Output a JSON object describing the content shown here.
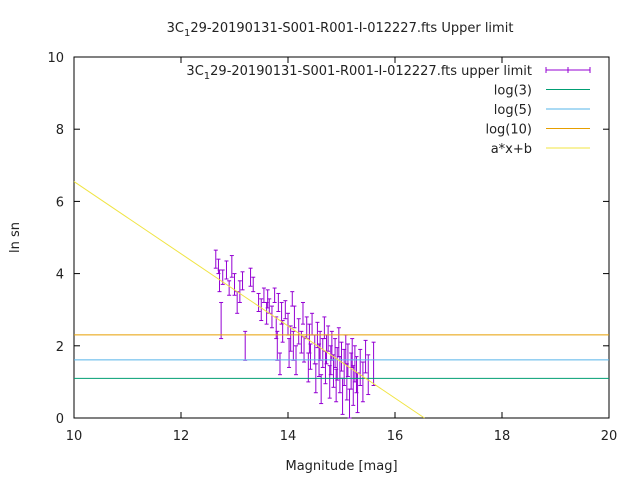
{
  "chart_data": {
    "type": "scatter",
    "title": "3C_129-20190131-S001-R001-I-012227.fts Upper limit",
    "title_parts": {
      "before": "3C",
      "subscript": "1",
      "after": "29-20190131-S001-R001-I-012227.fts Upper limit"
    },
    "xlabel": "Magnitude [mag]",
    "ylabel": "ln sn",
    "xlim": [
      10,
      20
    ],
    "ylim": [
      0,
      10
    ],
    "x_ticks": [
      "10",
      "12",
      "14",
      "16",
      "18",
      "20"
    ],
    "y_ticks": [
      "0",
      "2",
      "4",
      "6",
      "8",
      "10"
    ],
    "grid": false,
    "legend_position": "top-right",
    "legend": [
      {
        "label_parts": {
          "before": "3C",
          "subscript": "1",
          "after": "29-20190131-S001-R001-I-012227.fts upper limit"
        },
        "color": "#9400d3",
        "style": "errorbars"
      },
      {
        "label": "log(3)",
        "color": "#009e73",
        "style": "line"
      },
      {
        "label": "log(5)",
        "color": "#56b4e9",
        "style": "line"
      },
      {
        "label": "log(10)",
        "color": "#e69f00",
        "style": "line"
      },
      {
        "label": "a*x+b",
        "color": "#f0e442",
        "style": "line"
      }
    ],
    "hlines": [
      {
        "name": "log(3)",
        "y": 1.0986,
        "color": "#009e73"
      },
      {
        "name": "log(5)",
        "y": 1.6094,
        "color": "#56b4e9"
      },
      {
        "name": "log(10)",
        "y": 2.3026,
        "color": "#e69f00"
      }
    ],
    "fit_line": {
      "name": "a*x+b",
      "x": [
        10.0,
        16.55
      ],
      "y": [
        6.55,
        0.0
      ],
      "color": "#f0e442"
    },
    "series": [
      {
        "color": "#9400d3",
        "points": [
          [
            12.65,
            4.4,
            0.25
          ],
          [
            12.7,
            4.2,
            0.2
          ],
          [
            12.72,
            3.8,
            0.3
          ],
          [
            12.75,
            2.7,
            0.5
          ],
          [
            12.78,
            3.9,
            0.2
          ],
          [
            12.85,
            4.1,
            0.25
          ],
          [
            12.9,
            3.6,
            0.2
          ],
          [
            12.95,
            4.2,
            0.3
          ],
          [
            13.0,
            3.7,
            0.3
          ],
          [
            13.05,
            3.2,
            0.3
          ],
          [
            13.1,
            3.5,
            0.3
          ],
          [
            13.15,
            3.8,
            0.25
          ],
          [
            13.2,
            2.0,
            0.4
          ],
          [
            13.3,
            3.9,
            0.25
          ],
          [
            13.35,
            3.7,
            0.2
          ],
          [
            13.45,
            3.2,
            0.25
          ],
          [
            13.5,
            3.0,
            0.3
          ],
          [
            13.55,
            3.4,
            0.2
          ],
          [
            13.6,
            2.9,
            0.3
          ],
          [
            13.62,
            3.3,
            0.25
          ],
          [
            13.65,
            3.1,
            0.2
          ],
          [
            13.7,
            2.8,
            0.3
          ],
          [
            13.75,
            3.4,
            0.2
          ],
          [
            13.78,
            2.5,
            0.3
          ],
          [
            13.8,
            2.0,
            0.4
          ],
          [
            13.82,
            3.2,
            0.25
          ],
          [
            13.85,
            1.5,
            0.3
          ],
          [
            13.88,
            2.9,
            0.3
          ],
          [
            13.9,
            2.4,
            0.3
          ],
          [
            13.95,
            3.0,
            0.25
          ],
          [
            14.0,
            2.6,
            0.3
          ],
          [
            14.02,
            1.8,
            0.4
          ],
          [
            14.05,
            2.2,
            0.35
          ],
          [
            14.08,
            3.3,
            0.2
          ],
          [
            14.1,
            2.0,
            0.4
          ],
          [
            14.12,
            2.8,
            0.3
          ],
          [
            14.15,
            1.6,
            0.4
          ],
          [
            14.2,
            2.4,
            0.35
          ],
          [
            14.25,
            2.1,
            0.3
          ],
          [
            14.28,
            2.9,
            0.3
          ],
          [
            14.3,
            1.9,
            0.35
          ],
          [
            14.35,
            2.5,
            0.3
          ],
          [
            14.38,
            1.4,
            0.4
          ],
          [
            14.4,
            2.2,
            0.4
          ],
          [
            14.42,
            1.7,
            0.35
          ],
          [
            14.45,
            2.6,
            0.3
          ],
          [
            14.5,
            1.9,
            0.4
          ],
          [
            14.52,
            1.1,
            0.4
          ],
          [
            14.55,
            2.3,
            0.35
          ],
          [
            14.58,
            1.6,
            0.45
          ],
          [
            14.6,
            2.0,
            0.4
          ],
          [
            14.62,
            0.8,
            0.4
          ],
          [
            14.65,
            1.8,
            0.4
          ],
          [
            14.68,
            2.5,
            0.3
          ],
          [
            14.7,
            1.4,
            0.45
          ],
          [
            14.72,
            1.9,
            0.4
          ],
          [
            14.75,
            2.2,
            0.35
          ],
          [
            14.78,
            1.0,
            0.45
          ],
          [
            14.8,
            1.6,
            0.4
          ],
          [
            14.82,
            2.0,
            0.4
          ],
          [
            14.85,
            1.3,
            0.45
          ],
          [
            14.88,
            1.8,
            0.4
          ],
          [
            14.9,
            0.9,
            0.45
          ],
          [
            14.92,
            1.5,
            0.45
          ],
          [
            14.95,
            2.1,
            0.4
          ],
          [
            14.97,
            1.2,
            0.5
          ],
          [
            15.0,
            1.7,
            0.4
          ],
          [
            15.02,
            0.6,
            0.5
          ],
          [
            15.05,
            1.4,
            0.5
          ],
          [
            15.08,
            1.9,
            0.4
          ],
          [
            15.1,
            1.0,
            0.5
          ],
          [
            15.12,
            1.6,
            0.45
          ],
          [
            15.15,
            0.3,
            0.5
          ],
          [
            15.18,
            1.3,
            0.5
          ],
          [
            15.2,
            1.8,
            0.4
          ],
          [
            15.22,
            0.9,
            0.55
          ],
          [
            15.25,
            1.5,
            0.5
          ],
          [
            15.28,
            1.2,
            0.5
          ],
          [
            15.3,
            0.7,
            0.55
          ],
          [
            15.35,
            1.4,
            0.5
          ],
          [
            15.4,
            1.0,
            0.55
          ],
          [
            15.45,
            1.7,
            0.45
          ],
          [
            15.5,
            1.2,
            0.55
          ],
          [
            15.6,
            1.5,
            0.6
          ]
        ]
      }
    ]
  }
}
